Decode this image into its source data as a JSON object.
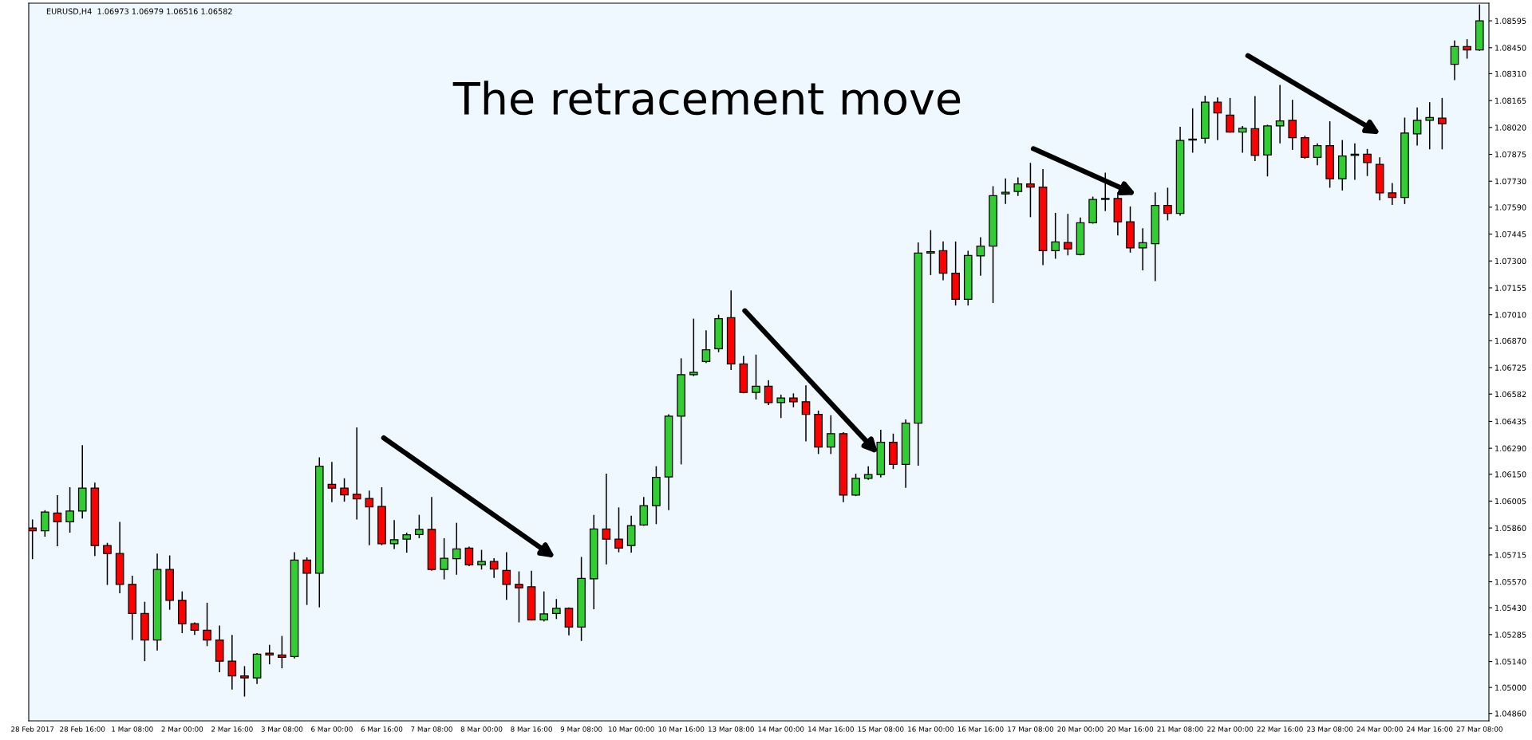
{
  "chart_data": {
    "type": "candlestick",
    "title": "The retracement move",
    "annotations": [
      "EURUSD,H4  1.06973 1.06979 1.06516 1.06582"
    ],
    "categories": [
      "28 Feb 2017",
      null,
      null,
      null,
      "28 Feb 16:00",
      null,
      null,
      null,
      "1 Mar 08:00",
      null,
      null,
      null,
      "2 Mar 00:00",
      null,
      null,
      null,
      "2 Mar 16:00",
      null,
      null,
      null,
      "3 Mar 08:00",
      null,
      null,
      null,
      "6 Mar 00:00",
      null,
      null,
      null,
      "6 Mar 16:00",
      null,
      null,
      null,
      "7 Mar 08:00",
      null,
      null,
      null,
      "8 Mar 00:00",
      null,
      null,
      null,
      "8 Mar 16:00",
      null,
      null,
      null,
      "9 Mar 08:00",
      null,
      null,
      null,
      "10 Mar 00:00",
      null,
      null,
      null,
      "10 Mar 16:00",
      null,
      null,
      null,
      "13 Mar 08:00",
      null,
      null,
      null,
      "14 Mar 00:00",
      null,
      null,
      null,
      "14 Mar 16:00",
      null,
      null,
      null,
      "15 Mar 08:00",
      null,
      null,
      null,
      "16 Mar 00:00",
      null,
      null,
      null,
      "16 Mar 16:00",
      null,
      null,
      null,
      "17 Mar 08:00",
      null,
      null,
      null,
      "20 Mar 00:00",
      null,
      null,
      null,
      "20 Mar 16:00",
      null,
      null,
      null,
      "21 Mar 08:00",
      null,
      null,
      null,
      "22 Mar 00:00",
      null,
      null,
      null,
      "22 Mar 16:00",
      null,
      null,
      null,
      "23 Mar 08:00",
      null,
      null,
      null,
      "24 Mar 00:00",
      null,
      null,
      null,
      "24 Mar 16:00",
      null,
      null,
      null,
      "27 Mar 08:00"
    ],
    "ohlc": [
      [
        1.0586,
        1.05906,
        1.05692,
        1.05845
      ],
      [
        1.05845,
        1.05956,
        1.05813,
        1.05946
      ],
      [
        1.05941,
        1.06037,
        1.05762,
        1.05893
      ],
      [
        1.05893,
        1.0608,
        1.05835,
        1.05951
      ],
      [
        1.05951,
        1.06307,
        1.05911,
        1.06075
      ],
      [
        1.06075,
        1.06105,
        1.05709,
        1.05765
      ],
      [
        1.05765,
        1.0578,
        1.05553,
        1.05722
      ],
      [
        1.05722,
        1.05893,
        1.05508,
        1.05556
      ],
      [
        1.05556,
        1.05603,
        1.05256,
        1.05399
      ],
      [
        1.05399,
        1.05462,
        1.05142,
        1.05256
      ],
      [
        1.05256,
        1.05722,
        1.052,
        1.05636
      ],
      [
        1.05636,
        1.05712,
        1.05419,
        1.0547
      ],
      [
        1.0547,
        1.05518,
        1.05293,
        1.05344
      ],
      [
        1.05344,
        1.05351,
        1.05283,
        1.05309
      ],
      [
        1.05309,
        1.05457,
        1.05223,
        1.05256
      ],
      [
        1.05256,
        1.05334,
        1.05082,
        1.05142
      ],
      [
        1.05142,
        1.05283,
        1.04989,
        1.05062
      ],
      [
        1.05062,
        1.05115,
        1.04951,
        1.05052
      ],
      [
        1.05052,
        1.05185,
        1.05019,
        1.0518
      ],
      [
        1.05185,
        1.0523,
        1.05125,
        1.05175
      ],
      [
        1.05175,
        1.05278,
        1.05104,
        1.05162
      ],
      [
        1.05167,
        1.05729,
        1.05157,
        1.05687
      ],
      [
        1.05687,
        1.05702,
        1.05445,
        1.05616
      ],
      [
        1.05616,
        1.06241,
        1.05432,
        1.06193
      ],
      [
        1.06095,
        1.06216,
        1.05999,
        1.06075
      ],
      [
        1.06075,
        1.06128,
        1.06002,
        1.06039
      ],
      [
        1.06042,
        1.06402,
        1.05906,
        1.06017
      ],
      [
        1.06019,
        1.06062,
        1.05767,
        1.05974
      ],
      [
        1.05976,
        1.0608,
        1.05767,
        1.05775
      ],
      [
        1.05775,
        1.05903,
        1.05747,
        1.05797
      ],
      [
        1.058,
        1.05835,
        1.05727,
        1.05823
      ],
      [
        1.05825,
        1.05931,
        1.05805,
        1.05853
      ],
      [
        1.05853,
        1.06027,
        1.05629,
        1.05636
      ],
      [
        1.05636,
        1.05805,
        1.05583,
        1.05697
      ],
      [
        1.05694,
        1.05888,
        1.05608,
        1.05747
      ],
      [
        1.05752,
        1.0576,
        1.05654,
        1.05661
      ],
      [
        1.05661,
        1.05742,
        1.05636,
        1.05679
      ],
      [
        1.05679,
        1.05697,
        1.05591,
        1.05639
      ],
      [
        1.05631,
        1.05729,
        1.05472,
        1.05556
      ],
      [
        1.05556,
        1.05626,
        1.05351,
        1.05538
      ],
      [
        1.05543,
        1.05629,
        1.05361,
        1.05364
      ],
      [
        1.05364,
        1.05518,
        1.05356,
        1.05397
      ],
      [
        1.05399,
        1.05477,
        1.05369,
        1.05427
      ],
      [
        1.05427,
        1.05432,
        1.05281,
        1.05326
      ],
      [
        1.05326,
        1.05704,
        1.05251,
        1.05588
      ],
      [
        1.05586,
        1.05931,
        1.05422,
        1.05855
      ],
      [
        1.05855,
        1.06153,
        1.05664,
        1.058
      ],
      [
        1.058,
        1.05971,
        1.05729,
        1.05752
      ],
      [
        1.05765,
        1.05926,
        1.05727,
        1.05873
      ],
      [
        1.05876,
        1.06027,
        1.05871,
        1.05981
      ],
      [
        1.05981,
        1.06193,
        1.05881,
        1.06133
      ],
      [
        1.06135,
        1.06473,
        1.05956,
        1.06463
      ],
      [
        1.06463,
        1.06775,
        1.06203,
        1.06687
      ],
      [
        1.06687,
        1.06989,
        1.06679,
        1.067
      ],
      [
        1.06758,
        1.06926,
        1.0675,
        1.06821
      ],
      [
        1.06826,
        1.0701,
        1.06808,
        1.06989
      ],
      [
        1.06994,
        1.07141,
        1.06712,
        1.06745
      ],
      [
        1.06745,
        1.06788,
        1.06586,
        1.06591
      ],
      [
        1.06591,
        1.06795,
        1.06553,
        1.06624
      ],
      [
        1.06624,
        1.06657,
        1.06523,
        1.06536
      ],
      [
        1.06536,
        1.06579,
        1.06453,
        1.06561
      ],
      [
        1.06561,
        1.06586,
        1.06511,
        1.06541
      ],
      [
        1.06541,
        1.06629,
        1.06327,
        1.06473
      ],
      [
        1.06473,
        1.06493,
        1.06259,
        1.06296
      ],
      [
        1.06296,
        1.06468,
        1.06259,
        1.06369
      ],
      [
        1.06369,
        1.06377,
        1.05999,
        1.06037
      ],
      [
        1.06037,
        1.06153,
        1.06032,
        1.06128
      ],
      [
        1.06128,
        1.06193,
        1.0612,
        1.06148
      ],
      [
        1.06148,
        1.0639,
        1.06133,
        1.06322
      ],
      [
        1.06322,
        1.06369,
        1.06178,
        1.06203
      ],
      [
        1.06203,
        1.06445,
        1.06077,
        1.06425
      ],
      [
        1.06425,
        1.074,
        1.06196,
        1.07342
      ],
      [
        1.07342,
        1.07466,
        1.07224,
        1.0735
      ],
      [
        1.07355,
        1.07405,
        1.07196,
        1.07234
      ],
      [
        1.07234,
        1.07405,
        1.0706,
        1.07093
      ],
      [
        1.07093,
        1.07355,
        1.0706,
        1.0733
      ],
      [
        1.07327,
        1.07428,
        1.07221,
        1.0738
      ],
      [
        1.0738,
        1.07703,
        1.07073,
        1.07652
      ],
      [
        1.07662,
        1.07745,
        1.07607,
        1.0767
      ],
      [
        1.07675,
        1.0775,
        1.0765,
        1.07715
      ],
      [
        1.07715,
        1.07829,
        1.07536,
        1.07698
      ],
      [
        1.07698,
        1.07796,
        1.07277,
        1.07355
      ],
      [
        1.07355,
        1.07559,
        1.07312,
        1.07403
      ],
      [
        1.074,
        1.07554,
        1.0733,
        1.07365
      ],
      [
        1.07335,
        1.07534,
        1.0733,
        1.07506
      ],
      [
        1.07506,
        1.07647,
        1.07501,
        1.07632
      ],
      [
        1.07632,
        1.07776,
        1.07569,
        1.07637
      ],
      [
        1.07637,
        1.0767,
        1.07438,
        1.07511
      ],
      [
        1.07511,
        1.07594,
        1.07345,
        1.0737
      ],
      [
        1.0737,
        1.07476,
        1.07249,
        1.07398
      ],
      [
        1.07393,
        1.0767,
        1.07191,
        1.07599
      ],
      [
        1.07599,
        1.07695,
        1.07519,
        1.07556
      ],
      [
        1.07556,
        1.08023,
        1.07544,
        1.0795
      ],
      [
        1.07952,
        1.08123,
        1.07884,
        1.07957
      ],
      [
        1.07962,
        1.08191,
        1.07934,
        1.08156
      ],
      [
        1.08156,
        1.08181,
        1.07952,
        1.08098
      ],
      [
        1.08086,
        1.08179,
        1.07992,
        1.07995
      ],
      [
        1.07995,
        1.08028,
        1.07884,
        1.08015
      ],
      [
        1.08013,
        1.08189,
        1.07839,
        1.07869
      ],
      [
        1.07871,
        1.08035,
        1.07756,
        1.08028
      ],
      [
        1.08028,
        1.08249,
        1.07934,
        1.08055
      ],
      [
        1.08058,
        1.08169,
        1.07899,
        1.07965
      ],
      [
        1.07965,
        1.07975,
        1.07851,
        1.07859
      ],
      [
        1.07859,
        1.07934,
        1.07816,
        1.07922
      ],
      [
        1.07922,
        1.08053,
        1.07695,
        1.07743
      ],
      [
        1.07743,
        1.07952,
        1.0768,
        1.07866
      ],
      [
        1.07869,
        1.07934,
        1.07738,
        1.07876
      ],
      [
        1.07876,
        1.07904,
        1.07758,
        1.07831
      ],
      [
        1.07821,
        1.07859,
        1.07627,
        1.07667
      ],
      [
        1.07667,
        1.0772,
        1.07602,
        1.07642
      ],
      [
        1.07642,
        1.08073,
        1.07607,
        1.0799
      ],
      [
        1.07985,
        1.08128,
        1.07922,
        1.08058
      ],
      [
        1.08058,
        1.08156,
        1.07902,
        1.08073
      ],
      [
        1.0807,
        1.08179,
        1.07902,
        1.0804
      ],
      [
        1.0836,
        1.08489,
        1.08275,
        1.08456
      ],
      [
        1.08456,
        1.08496,
        1.08391,
        1.08438
      ],
      [
        1.08438,
        1.08683,
        1.08433,
        1.08595
      ]
    ],
    "colors": [
      "#ff0000",
      "#32cd32",
      "#ff0000",
      "#32cd32",
      "#32cd32",
      "#ff0000",
      "#ff0000",
      "#ff0000",
      "#ff0000",
      "#ff0000",
      "#32cd32",
      "#ff0000",
      "#ff0000",
      "#ff0000",
      "#ff0000",
      "#ff0000",
      "#ff0000",
      "#ff0000",
      "#32cd32",
      "#ff0000",
      "#ff0000",
      "#32cd32",
      "#ff0000",
      "#32cd32",
      "#ff0000",
      "#ff0000",
      "#ff0000",
      "#ff0000",
      "#ff0000",
      "#32cd32",
      "#32cd32",
      "#32cd32",
      "#ff0000",
      "#32cd32",
      "#32cd32",
      "#ff0000",
      "#32cd32",
      "#ff0000",
      "#ff0000",
      "#ff0000",
      "#ff0000",
      "#32cd32",
      "#32cd32",
      "#ff0000",
      "#32cd32",
      "#32cd32",
      "#ff0000",
      "#ff0000",
      "#32cd32",
      "#32cd32",
      "#32cd32",
      "#32cd32",
      "#32cd32",
      "#32cd32",
      "#32cd32",
      "#32cd32",
      "#ff0000",
      "#ff0000",
      "#32cd32",
      "#ff0000",
      "#32cd32",
      "#ff0000",
      "#ff0000",
      "#ff0000",
      "#32cd32",
      "#ff0000",
      "#32cd32",
      "#32cd32",
      "#32cd32",
      "#ff0000",
      "#32cd32",
      "#32cd32",
      "#32cd32",
      "#ff0000",
      "#ff0000",
      "#32cd32",
      "#32cd32",
      "#32cd32",
      "#32cd32",
      "#32cd32",
      "#ff0000",
      "#ff0000",
      "#32cd32",
      "#ff0000",
      "#32cd32",
      "#32cd32",
      "#32cd32",
      "#ff0000",
      "#ff0000",
      "#32cd32",
      "#32cd32",
      "#ff0000",
      "#32cd32",
      "#32cd32",
      "#32cd32",
      "#ff0000",
      "#ff0000",
      "#32cd32",
      "#ff0000",
      "#32cd32",
      "#32cd32",
      "#ff0000",
      "#ff0000",
      "#32cd32",
      "#ff0000",
      "#32cd32",
      "#32cd32",
      "#ff0000",
      "#ff0000",
      "#ff0000",
      "#32cd32",
      "#32cd32",
      "#32cd32",
      "#ff0000",
      "#32cd32",
      "#ff0000",
      "#32cd32"
    ],
    "ylim": [
      1.0482,
      1.0869
    ],
    "yticks": [
      {
        "value": 1.0486,
        "label": "1.04860"
      },
      {
        "value": 1.05,
        "label": "1.05000"
      },
      {
        "value": 1.0514,
        "label": "1.05140"
      },
      1.05285,
      {
        "value": 1.0543,
        "label": "1.05430"
      },
      {
        "value": 1.0557,
        "label": "1.05570"
      },
      1.05715,
      {
        "value": 1.0586,
        "label": "1.05860"
      },
      1.06005,
      {
        "value": 1.0615,
        "label": "1.06150"
      },
      {
        "value": 1.0629,
        "label": "1.06290"
      },
      1.06435,
      1.06582,
      1.06725,
      {
        "value": 1.0687,
        "label": "1.06870"
      },
      {
        "value": 1.0701,
        "label": "1.07010"
      },
      1.07155,
      {
        "value": 1.073,
        "label": "1.07300"
      },
      1.07445,
      {
        "value": 1.0759,
        "label": "1.07590"
      },
      {
        "value": 1.0773,
        "label": "1.07730"
      },
      1.07875,
      {
        "value": 1.0802,
        "label": "1.08020"
      },
      1.08165,
      {
        "value": 1.0831,
        "label": "1.08310"
      },
      {
        "value": 1.0845,
        "label": "1.08450"
      },
      1.08595
    ],
    "grid": false,
    "legend": false
  }
}
